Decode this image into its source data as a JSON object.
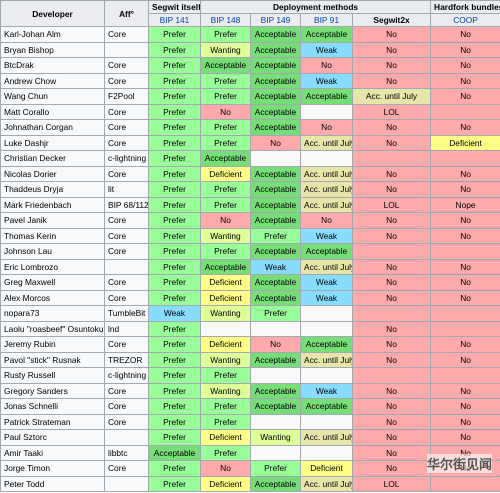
{
  "header": {
    "developer": "Developer",
    "affiliation": "Aff°",
    "groups": [
      "Segwit itself",
      "Deployment methods",
      "Hardfork bundles (Silbert agreement"
    ],
    "columns": [
      "BIP 141",
      "BIP 148",
      "BIP 149",
      "BIP 91",
      "Segwit2x",
      "COOP"
    ]
  },
  "rows": [
    [
      "Karl-Johan Alm",
      "Core",
      "Prefer",
      "Prefer",
      "Acceptable",
      "Acceptable",
      "No",
      "No"
    ],
    [
      "Bryan Bishop",
      null,
      "Prefer",
      "Wanting",
      "Acceptable",
      "Weak",
      "No",
      "No"
    ],
    [
      "BtcDrak",
      "Core",
      "Prefer",
      "Acceptable",
      "Acceptable",
      "No",
      "No",
      "No"
    ],
    [
      "Andrew Chow",
      "Core",
      "Prefer",
      "Prefer",
      "Acceptable",
      "Weak",
      "No",
      "No"
    ],
    [
      "Wang Chun",
      "F2Pool",
      "Prefer",
      "Prefer",
      "Acceptable",
      "Acceptable",
      "Acc. until July",
      "No"
    ],
    [
      "Matt Corallo",
      "Core",
      "Prefer",
      "No",
      "Acceptable",
      null,
      "LOL",
      null
    ],
    [
      "Johnathan Corgan",
      "Core",
      "Prefer",
      "Prefer",
      "Acceptable",
      "No",
      "No",
      "No"
    ],
    [
      "Luke Dashjr",
      "Core",
      "Prefer",
      "Prefer",
      "No",
      "Acc. until July",
      "No",
      "Deficient"
    ],
    [
      "Christian Decker",
      "c-lightning",
      "Prefer",
      "Acceptable",
      null,
      null,
      null,
      null
    ],
    [
      "Nicolas Dorier",
      "Core",
      "Prefer",
      "Deficient",
      "Acceptable",
      "Acc. until July",
      "No",
      "No"
    ],
    [
      "Thaddeus Dryja",
      "lit",
      "Prefer",
      "Prefer",
      "Acceptable",
      "Acc. until July",
      "No",
      "No"
    ],
    [
      "Mark Friedenbach",
      "BIP 68/112",
      "Prefer",
      "Prefer",
      "Acceptable",
      "Acc. until July",
      "LOL",
      "Nope"
    ],
    [
      "Pavel Janik",
      "Core",
      "Prefer",
      "No",
      "Acceptable",
      "No",
      "No",
      "No"
    ],
    [
      "Thomas Kerin",
      "Core",
      "Prefer",
      "Wanting",
      "Prefer",
      "Weak",
      "No",
      "No"
    ],
    [
      "Johnson Lau",
      "Core",
      "Prefer",
      "Prefer",
      "Acceptable",
      "Acceptable",
      null,
      null
    ],
    [
      "Eric Lombrozo",
      null,
      "Prefer",
      "Acceptable",
      "Weak",
      "Acc. until July",
      "No",
      "No"
    ],
    [
      "Greg Maxwell",
      "Core",
      "Prefer",
      "Deficient",
      "Acceptable",
      "Weak",
      "No",
      "No"
    ],
    [
      "Alex Morcos",
      "Core",
      "Prefer",
      "Deficient",
      "Acceptable",
      "Weak",
      "No",
      "No"
    ],
    [
      "nopara73",
      "TumbleBit",
      "Weak",
      "Wanting",
      "Prefer",
      null,
      null,
      null
    ],
    [
      "Laolu \"roasbeef\" Osuntokun",
      "lnd",
      "Prefer",
      null,
      null,
      null,
      "No",
      null
    ],
    [
      "Jeremy Rubin",
      "Core",
      "Prefer",
      "Deficient",
      "No",
      "Acceptable",
      "No",
      "No"
    ],
    [
      "Pavol \"stick\" Rusnak",
      "TREZOR",
      "Prefer",
      "Wanting",
      "Acceptable",
      "Acc. until July",
      "No",
      "No"
    ],
    [
      "Rusty Russell",
      "c-lightning",
      "Prefer",
      "Prefer",
      null,
      null,
      null,
      null
    ],
    [
      "Gregory Sanders",
      "Core",
      "Prefer",
      "Wanting",
      "Acceptable",
      "Weak",
      "No",
      "No"
    ],
    [
      "Jonas Schnelli",
      "Core",
      "Prefer",
      "Prefer",
      "Acceptable",
      "Acceptable",
      "No",
      "No"
    ],
    [
      "Patrick Strateman",
      "Core",
      "Prefer",
      "Prefer",
      null,
      null,
      "No",
      "No"
    ],
    [
      "Paul Sztorc",
      null,
      "Prefer",
      "Deficient",
      "Wanting",
      "Acc. until July",
      "No",
      "No"
    ],
    [
      "Amir Taaki",
      "libbtc",
      "Acceptable",
      "Prefer",
      null,
      null,
      "No",
      "No"
    ],
    [
      "Jorge Timon",
      "Core",
      "Prefer",
      "No",
      "Prefer",
      "Deficient",
      "No",
      "No"
    ],
    [
      "Peter Todd",
      null,
      "Prefer",
      "Deficient",
      "Acceptable",
      "Acc. until July",
      "LOL",
      null
    ]
  ],
  "watermark": "华尔街见闻"
}
